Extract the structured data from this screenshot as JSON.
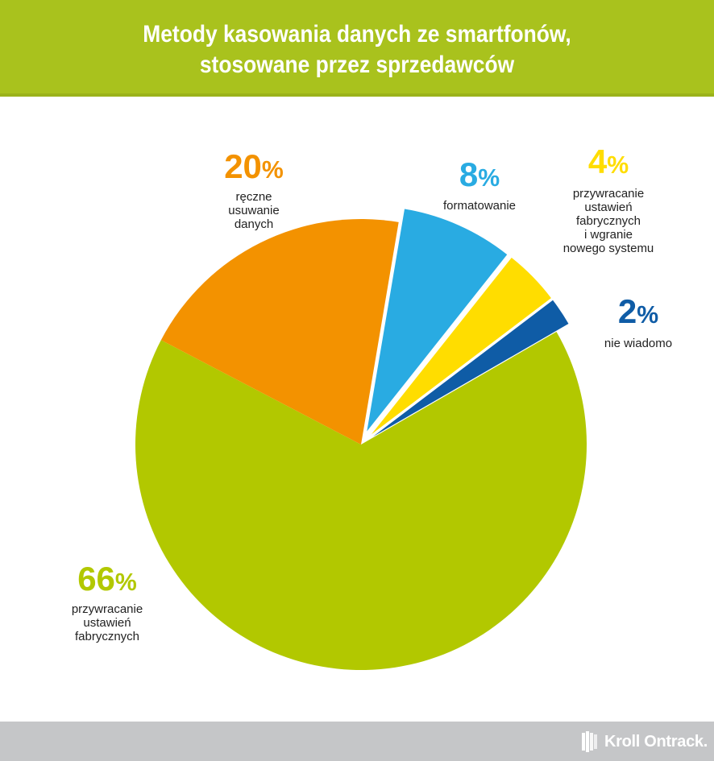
{
  "title": {
    "line1": "Metody kasowania danych ze smartfonów,",
    "line2": "stosowane przez sprzedawców"
  },
  "colors": {
    "header": "#a9c21d",
    "footer": "#c5c6c8",
    "green": "#b2c800",
    "orange": "#f39200",
    "lightblue": "#29abe2",
    "yellow": "#ffdd00",
    "darkblue": "#0f5ca6"
  },
  "chart_data": {
    "type": "pie",
    "slices": [
      {
        "label": "przywracanie\nustawień\nfabrycznych",
        "value": 66,
        "value_label": "66",
        "color": "#b2c800",
        "exploded": false
      },
      {
        "label": "ręczne\nusuwanie\ndanych",
        "value": 20,
        "value_label": "20",
        "color": "#f39200",
        "exploded": false
      },
      {
        "label": "formatowanie",
        "value": 8,
        "value_label": "8",
        "color": "#29abe2",
        "exploded": true
      },
      {
        "label": "przywracanie\nustawień\nfabrycznych\ni wgranie\nnowego systemu",
        "value": 4,
        "value_label": "4",
        "color": "#ffdd00",
        "exploded": true
      },
      {
        "label": "nie wiadomo",
        "value": 2,
        "value_label": "2",
        "color": "#0f5ca6",
        "exploded": true
      }
    ],
    "percent_sign": "%"
  },
  "footer": {
    "logo_text": "Kroll Ontrack."
  }
}
